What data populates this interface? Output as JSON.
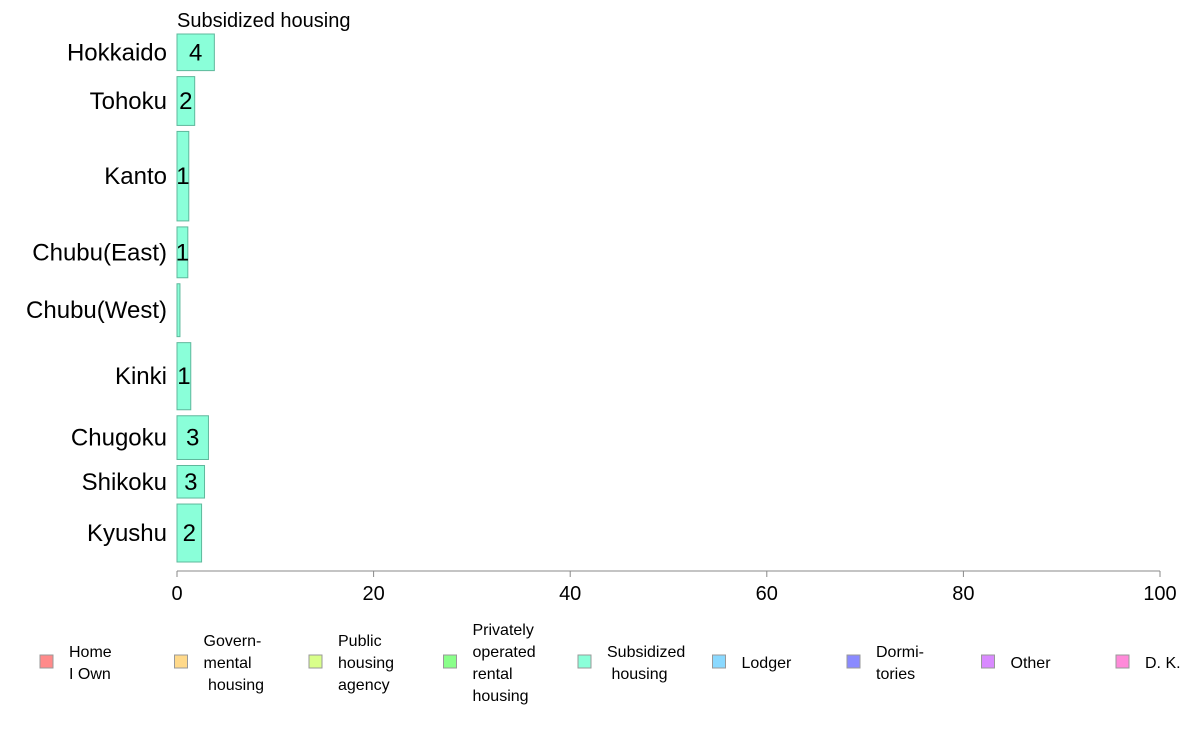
{
  "chart_data": {
    "type": "bar",
    "orientation": "horizontal",
    "title": "Subsidized housing",
    "categories": [
      "Hokkaido",
      "Tohoku",
      "Kanto",
      "Chubu(East)",
      "Chubu(West)",
      "Kinki",
      "Chugoku",
      "Shikoku",
      "Kyushu"
    ],
    "values": [
      3.8,
      1.8,
      1.2,
      1.1,
      0.3,
      1.4,
      3.2,
      2.8,
      2.5
    ],
    "data_labels": [
      "4",
      "2",
      "1",
      "1",
      "",
      "1",
      "3",
      "3",
      "2"
    ],
    "category_weights": [
      0.36,
      0.48,
      0.88,
      0.5,
      0.52,
      0.66,
      0.43,
      0.32,
      0.57
    ],
    "xlim": [
      0,
      100
    ],
    "xticks": [
      0,
      20,
      40,
      60,
      80,
      100
    ],
    "xlabel": "",
    "ylabel": "",
    "grid": false,
    "bar_color": "#8affd9",
    "bar_stroke": "#5fb89c",
    "legend": {
      "placement": "bottom",
      "items": [
        {
          "lines": [
            "Home",
            "I Own"
          ],
          "color": "#ff8a8a"
        },
        {
          "lines": [
            "Govern-",
            "mental",
            " housing"
          ],
          "color": "#ffd98a"
        },
        {
          "lines": [
            "Public",
            "housing",
            "agency"
          ],
          "color": "#d9ff8a"
        },
        {
          "lines": [
            "Privately",
            "operated",
            "rental",
            "housing"
          ],
          "color": "#8aff8a"
        },
        {
          "lines": [
            "Subsidized",
            " housing"
          ],
          "color": "#8affd9"
        },
        {
          "lines": [
            "Lodger"
          ],
          "color": "#8ad9ff"
        },
        {
          "lines": [
            "Dormi-",
            "tories"
          ],
          "color": "#8a8aff"
        },
        {
          "lines": [
            "Other"
          ],
          "color": "#d98aff"
        },
        {
          "lines": [
            "D. K."
          ],
          "color": "#ff8ad9"
        }
      ]
    }
  }
}
